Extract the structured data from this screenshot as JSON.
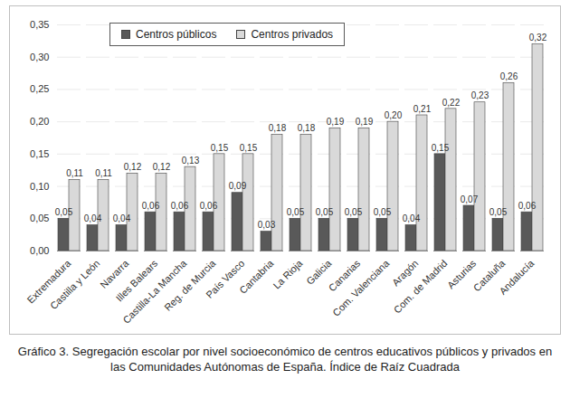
{
  "chart_data": {
    "type": "bar",
    "title": "Gráfico 3. Segregación escolar por nivel socioeconómico de centros educativos públicos y privados en las Comunidades Autónomas de España. Índice de Raíz Cuadrada",
    "categories": [
      "Extremadura",
      "Castilla y León",
      "Navarra",
      "Illes Balears",
      "Castilla-La Mancha",
      "Reg. de Murcia",
      "País Vasco",
      "Cantabria",
      "La Rioja",
      "Galicia",
      "Canarias",
      "Com. Valenciana",
      "Aragón",
      "Com. de Madrid",
      "Asturias",
      "Cataluña",
      "Andalucía"
    ],
    "series": [
      {
        "name": "Centros públicos",
        "color": "#595959",
        "values": [
          0.05,
          0.04,
          0.04,
          0.06,
          0.06,
          0.06,
          0.09,
          0.03,
          0.05,
          0.05,
          0.05,
          0.05,
          0.04,
          0.15,
          0.07,
          0.05,
          0.06
        ],
        "value_labels": [
          "0,05",
          "0,04",
          "0,04",
          "0,06",
          "0,06",
          "0,06",
          "0,09",
          "0,03",
          "0,05",
          "0,05",
          "0,05",
          "0,05",
          "0,04",
          "0,15",
          "0,07",
          "0,05",
          "0,06"
        ]
      },
      {
        "name": "Centros privados",
        "color": "#d9d9d9",
        "values": [
          0.11,
          0.11,
          0.12,
          0.12,
          0.13,
          0.15,
          0.15,
          0.18,
          0.18,
          0.19,
          0.19,
          0.2,
          0.21,
          0.22,
          0.23,
          0.26,
          0.32
        ],
        "value_labels": [
          "0,11",
          "0,11",
          "0,12",
          "0,12",
          "0,13",
          "0,15",
          "0,15",
          "0,18",
          "0,18",
          "0,19",
          "0,19",
          "0,20",
          "0,21",
          "0,22",
          "0,23",
          "0,26",
          "0,32"
        ]
      }
    ],
    "ylim": [
      0,
      0.35
    ],
    "yticks": [
      {
        "value": 0,
        "label": "0,00"
      },
      {
        "value": 0.05,
        "label": "0,05"
      },
      {
        "value": 0.1,
        "label": "0,10"
      },
      {
        "value": 0.15,
        "label": "0,15"
      },
      {
        "value": 0.2,
        "label": "0,20"
      },
      {
        "value": 0.25,
        "label": "0,25"
      },
      {
        "value": 0.3,
        "label": "0,30"
      },
      {
        "value": 0.35,
        "label": "0,35"
      }
    ],
    "grid": true,
    "legend": "top-left",
    "data_labels": true
  }
}
